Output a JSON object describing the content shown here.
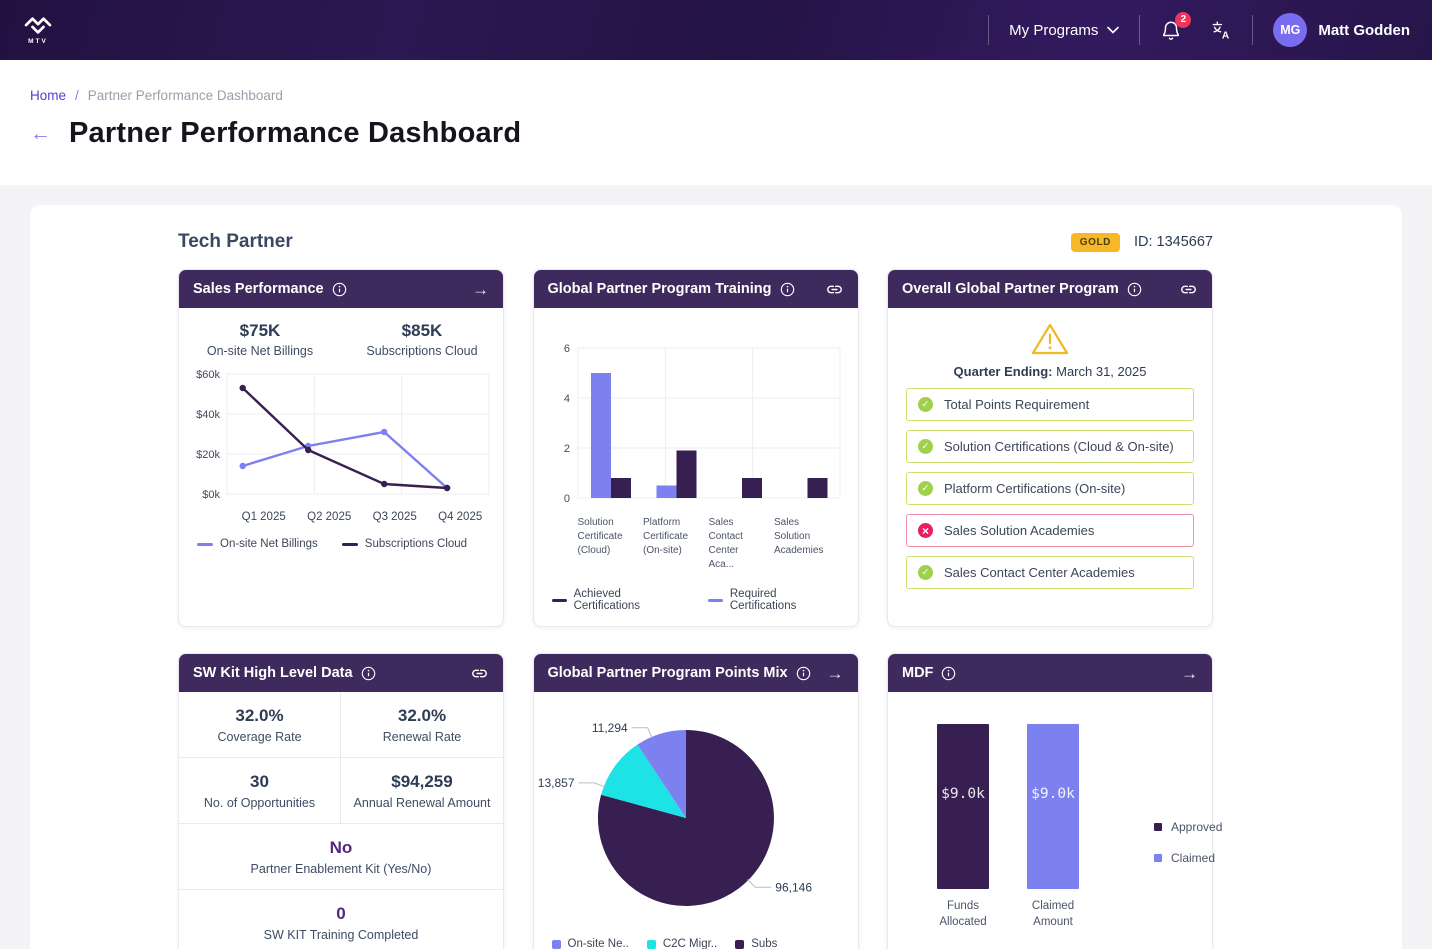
{
  "nav": {
    "logo_text": "MTV",
    "my_programs": "My Programs",
    "notification_count": "2",
    "avatar_initials": "MG",
    "user_name": "Matt Godden"
  },
  "breadcrumb": {
    "home": "Home",
    "separator": "/",
    "current": "Partner Performance Dashboard"
  },
  "page": {
    "back_arrow": "←",
    "title": "Partner Performance Dashboard"
  },
  "partner": {
    "heading": "Tech Partner",
    "tier": "GOLD",
    "partner_id": "ID: 1345667"
  },
  "colors": {
    "brand_dark_purple": "#3f2a5e",
    "accent_purple": "#7d80ef",
    "series_dark": "#372051",
    "cyan": "#1de3e6",
    "gold": "#f6b826",
    "pass_green": "#9fd14c",
    "fail_pink": "#ea1e5e",
    "warning_amber": "#f2b824",
    "notification_red": "#f0355c",
    "avatar_purple": "#7a6cf0"
  },
  "cards": {
    "sales": {
      "title": "Sales Performance",
      "header_action": "→",
      "stats": [
        {
          "value": "$75K",
          "label": "On-site Net Billings"
        },
        {
          "value": "$85K",
          "label": "Subscriptions Cloud"
        }
      ]
    },
    "training": {
      "title": "Global Partner Program Training"
    },
    "overall": {
      "title": "Overall Global Partner Program",
      "quarter_label": "Quarter Ending:",
      "quarter_value": "March 31, 2025",
      "items": [
        {
          "label": "Total Points Requirement",
          "status": "pass"
        },
        {
          "label": "Solution Certifications (Cloud & On-site)",
          "status": "pass"
        },
        {
          "label": "Platform Certifications (On-site)",
          "status": "pass"
        },
        {
          "label": "Sales Solution Academies",
          "status": "fail"
        },
        {
          "label": "Sales Contact Center Academies",
          "status": "pass"
        }
      ]
    },
    "sw_kit": {
      "title": "SW Kit High Level Data",
      "stats": [
        {
          "value": "32.0%",
          "label": "Coverage Rate"
        },
        {
          "value": "32.0%",
          "label": "Renewal Rate"
        },
        {
          "value": "30",
          "label": "No. of Opportunities"
        },
        {
          "value": "$94,259",
          "label": "Annual Renewal Amount"
        },
        {
          "value": "No",
          "label": "Partner Enablement Kit (Yes/No)"
        },
        {
          "value": "0",
          "label": "SW KIT Training Completed"
        }
      ]
    },
    "points_mix": {
      "title": "Global Partner Program Points Mix",
      "header_action": "→"
    },
    "mdf": {
      "title": "MDF",
      "header_action": "→"
    }
  },
  "chart_data": [
    {
      "id": "sales-trend",
      "type": "line",
      "title": "Sales Performance",
      "categories": [
        "Q1 2025",
        "Q2 2025",
        "Q3 2025",
        "Q4 2025"
      ],
      "series": [
        {
          "name": "On-site Net Billings",
          "color": "#7d80ef",
          "values": [
            14000,
            24000,
            31000,
            3000
          ]
        },
        {
          "name": "Subscriptions Cloud",
          "color": "#372051",
          "values": [
            53000,
            22000,
            5000,
            3000
          ]
        }
      ],
      "ylim": [
        0,
        60000
      ],
      "yticks": [
        "$0k",
        "$20k",
        "$40k",
        "$60k"
      ],
      "grid": true,
      "legend_position": "bottom"
    },
    {
      "id": "training-certifications",
      "type": "bar",
      "title": "Global Partner Program Training",
      "categories": [
        "Solution Certificate (Cloud)",
        "Platform Certificate (On-site)",
        "Sales Contact Center Aca...",
        "Sales Solution Academies"
      ],
      "series": [
        {
          "name": "Required Certifications",
          "color": "#7d80ef",
          "values": [
            5,
            0.5,
            0,
            0
          ]
        },
        {
          "name": "Achieved Certifications",
          "color": "#372051",
          "values": [
            0.8,
            1.9,
            0.8,
            0.8
          ]
        }
      ],
      "ylim": [
        0,
        6
      ],
      "yticks": [
        0,
        2,
        4,
        6
      ],
      "grid": true,
      "legend_position": "bottom"
    },
    {
      "id": "points-mix",
      "type": "pie",
      "title": "Global Partner Program Points Mix",
      "slices": [
        {
          "label": "On-site Ne..",
          "value": 11294,
          "display": "11,294",
          "color": "#7d80ef"
        },
        {
          "label": "C2C Migr..",
          "value": 13857,
          "display": "13,857",
          "color": "#1de3e6"
        },
        {
          "label": "Subs",
          "value": 96146,
          "display": "96,146",
          "color": "#372051"
        }
      ],
      "legend_position": "bottom"
    },
    {
      "id": "mdf-funds",
      "type": "bar",
      "title": "MDF",
      "categories": [
        "Funds Allocated",
        "Claimed Amount"
      ],
      "values": [
        9000,
        9000
      ],
      "bar_labels": [
        "$9.0k",
        "$9.0k"
      ],
      "colors": [
        "#372051",
        "#7d80ef"
      ],
      "ylim": [
        0,
        9000
      ],
      "legend": [
        {
          "label": "Approved",
          "color": "#372051"
        },
        {
          "label": "Claimed",
          "color": "#7d80ef"
        }
      ],
      "legend_position": "right"
    }
  ]
}
